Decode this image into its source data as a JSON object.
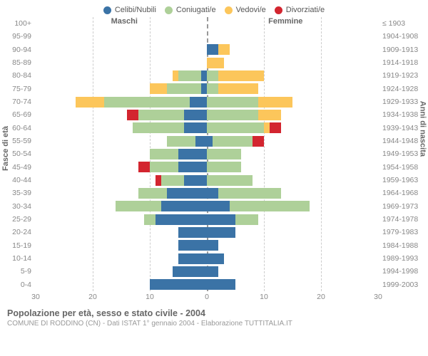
{
  "legend": [
    {
      "label": "Celibi/Nubili",
      "color": "#3b73a6"
    },
    {
      "label": "Coniugati/e",
      "color": "#aed099"
    },
    {
      "label": "Vedovi/e",
      "color": "#fcc65b"
    },
    {
      "label": "Divorziati/e",
      "color": "#d3252f"
    }
  ],
  "header": {
    "male": "Maschi",
    "female": "Femmine"
  },
  "axis": {
    "left_title": "Fasce di età",
    "right_title": "Anni di nascita",
    "xmax": 30,
    "xticks": [
      30,
      20,
      10,
      0,
      10,
      20,
      30
    ]
  },
  "caption": {
    "title": "Popolazione per età, sesso e stato civile - 2004",
    "subtitle": "COMUNE DI RODDINO (CN) - Dati ISTAT 1° gennaio 2004 - Elaborazione TUTTITALIA.IT"
  },
  "chart": {
    "type": "population-pyramid",
    "background": "#ffffff",
    "grid_color": "#cccccc",
    "center_color": "#999999",
    "bar_height_pct": 82,
    "font_family": "Arial",
    "label_fontsize": 10.5,
    "title_fontsize": 12.5
  },
  "rows": [
    {
      "age": "100+",
      "birth": "≤ 1903",
      "m": {
        "c": 0,
        "s": 0,
        "v": 0,
        "d": 0
      },
      "f": {
        "c": 0,
        "s": 0,
        "v": 0,
        "d": 0
      }
    },
    {
      "age": "95-99",
      "birth": "1904-1908",
      "m": {
        "c": 0,
        "s": 0,
        "v": 0,
        "d": 0
      },
      "f": {
        "c": 0,
        "s": 0,
        "v": 0,
        "d": 0
      }
    },
    {
      "age": "90-94",
      "birth": "1909-1913",
      "m": {
        "c": 0,
        "s": 0,
        "v": 0,
        "d": 0
      },
      "f": {
        "c": 2,
        "s": 0,
        "v": 2,
        "d": 0
      }
    },
    {
      "age": "85-89",
      "birth": "1914-1918",
      "m": {
        "c": 0,
        "s": 0,
        "v": 0,
        "d": 0
      },
      "f": {
        "c": 0,
        "s": 0,
        "v": 3,
        "d": 0
      }
    },
    {
      "age": "80-84",
      "birth": "1919-1923",
      "m": {
        "c": 1,
        "s": 4,
        "v": 1,
        "d": 0
      },
      "f": {
        "c": 0,
        "s": 2,
        "v": 8,
        "d": 0
      }
    },
    {
      "age": "75-79",
      "birth": "1924-1928",
      "m": {
        "c": 1,
        "s": 6,
        "v": 3,
        "d": 0
      },
      "f": {
        "c": 0,
        "s": 2,
        "v": 7,
        "d": 0
      }
    },
    {
      "age": "70-74",
      "birth": "1929-1933",
      "m": {
        "c": 3,
        "s": 15,
        "v": 5,
        "d": 0
      },
      "f": {
        "c": 0,
        "s": 9,
        "v": 6,
        "d": 0
      }
    },
    {
      "age": "65-69",
      "birth": "1934-1938",
      "m": {
        "c": 4,
        "s": 8,
        "v": 0,
        "d": 2
      },
      "f": {
        "c": 0,
        "s": 9,
        "v": 4,
        "d": 0
      }
    },
    {
      "age": "60-64",
      "birth": "1939-1943",
      "m": {
        "c": 4,
        "s": 9,
        "v": 0,
        "d": 0
      },
      "f": {
        "c": 0,
        "s": 10,
        "v": 1,
        "d": 2
      }
    },
    {
      "age": "55-59",
      "birth": "1944-1948",
      "m": {
        "c": 2,
        "s": 5,
        "v": 0,
        "d": 0
      },
      "f": {
        "c": 1,
        "s": 7,
        "v": 0,
        "d": 2
      }
    },
    {
      "age": "50-54",
      "birth": "1949-1953",
      "m": {
        "c": 5,
        "s": 5,
        "v": 0,
        "d": 0
      },
      "f": {
        "c": 0,
        "s": 6,
        "v": 0,
        "d": 0
      }
    },
    {
      "age": "45-49",
      "birth": "1954-1958",
      "m": {
        "c": 5,
        "s": 5,
        "v": 0,
        "d": 2
      },
      "f": {
        "c": 0,
        "s": 6,
        "v": 0,
        "d": 0
      }
    },
    {
      "age": "40-44",
      "birth": "1959-1963",
      "m": {
        "c": 4,
        "s": 4,
        "v": 0,
        "d": 1
      },
      "f": {
        "c": 0,
        "s": 8,
        "v": 0,
        "d": 0
      }
    },
    {
      "age": "35-39",
      "birth": "1964-1968",
      "m": {
        "c": 7,
        "s": 5,
        "v": 0,
        "d": 0
      },
      "f": {
        "c": 2,
        "s": 11,
        "v": 0,
        "d": 0
      }
    },
    {
      "age": "30-34",
      "birth": "1969-1973",
      "m": {
        "c": 8,
        "s": 8,
        "v": 0,
        "d": 0
      },
      "f": {
        "c": 4,
        "s": 14,
        "v": 0,
        "d": 0
      }
    },
    {
      "age": "25-29",
      "birth": "1974-1978",
      "m": {
        "c": 9,
        "s": 2,
        "v": 0,
        "d": 0
      },
      "f": {
        "c": 5,
        "s": 4,
        "v": 0,
        "d": 0
      }
    },
    {
      "age": "20-24",
      "birth": "1979-1983",
      "m": {
        "c": 5,
        "s": 0,
        "v": 0,
        "d": 0
      },
      "f": {
        "c": 5,
        "s": 0,
        "v": 0,
        "d": 0
      }
    },
    {
      "age": "15-19",
      "birth": "1984-1988",
      "m": {
        "c": 5,
        "s": 0,
        "v": 0,
        "d": 0
      },
      "f": {
        "c": 2,
        "s": 0,
        "v": 0,
        "d": 0
      }
    },
    {
      "age": "10-14",
      "birth": "1989-1993",
      "m": {
        "c": 5,
        "s": 0,
        "v": 0,
        "d": 0
      },
      "f": {
        "c": 3,
        "s": 0,
        "v": 0,
        "d": 0
      }
    },
    {
      "age": "5-9",
      "birth": "1994-1998",
      "m": {
        "c": 6,
        "s": 0,
        "v": 0,
        "d": 0
      },
      "f": {
        "c": 2,
        "s": 0,
        "v": 0,
        "d": 0
      }
    },
    {
      "age": "0-4",
      "birth": "1999-2003",
      "m": {
        "c": 10,
        "s": 0,
        "v": 0,
        "d": 0
      },
      "f": {
        "c": 5,
        "s": 0,
        "v": 0,
        "d": 0
      }
    }
  ]
}
